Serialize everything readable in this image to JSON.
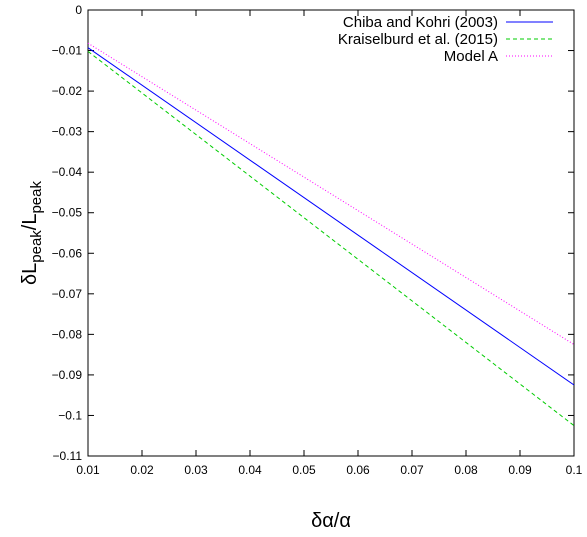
{
  "chart_data": {
    "type": "line",
    "xlabel": "δα/α",
    "ylabel_main": "δL",
    "ylabel_sub1": "peak",
    "ylabel_slash": "/L",
    "ylabel_sub2": "peak",
    "xlim": [
      0.01,
      0.1
    ],
    "ylim": [
      -0.11,
      0
    ],
    "x_ticks": [
      0.01,
      0.02,
      0.03,
      0.04,
      0.05,
      0.06,
      0.07,
      0.08,
      0.09,
      0.1
    ],
    "x_tick_labels": [
      "0.01",
      "0.02",
      "0.03",
      "0.04",
      "0.05",
      "0.06",
      "0.07",
      "0.08",
      "0.09",
      "0.1"
    ],
    "y_ticks": [
      0,
      -0.01,
      -0.02,
      -0.03,
      -0.04,
      -0.05,
      -0.06,
      -0.07,
      -0.08,
      -0.09,
      -0.1,
      -0.11
    ],
    "y_tick_labels": [
      "0",
      "-0.01",
      "-0.02",
      "-0.03",
      "-0.04",
      "-0.05",
      "-0.06",
      "-0.07",
      "-0.08",
      "-0.09",
      "-0.1",
      "-0.11"
    ],
    "grid": false,
    "legend_position": "top-right",
    "series": [
      {
        "name": "Chiba and Kohri (2003)",
        "color": "#0000ff",
        "dash": "solid",
        "x": [
          0.01,
          0.1
        ],
        "y": [
          -0.0093,
          -0.0925
        ]
      },
      {
        "name": "Kraiselburd et al. (2015)",
        "color": "#00cc00",
        "dash": "dashed",
        "x": [
          0.01,
          0.1
        ],
        "y": [
          -0.0102,
          -0.1025
        ]
      },
      {
        "name": "Model A",
        "color": "#ff00ff",
        "dash": "dotted",
        "x": [
          0.01,
          0.1
        ],
        "y": [
          -0.0082,
          -0.0825
        ]
      }
    ]
  }
}
